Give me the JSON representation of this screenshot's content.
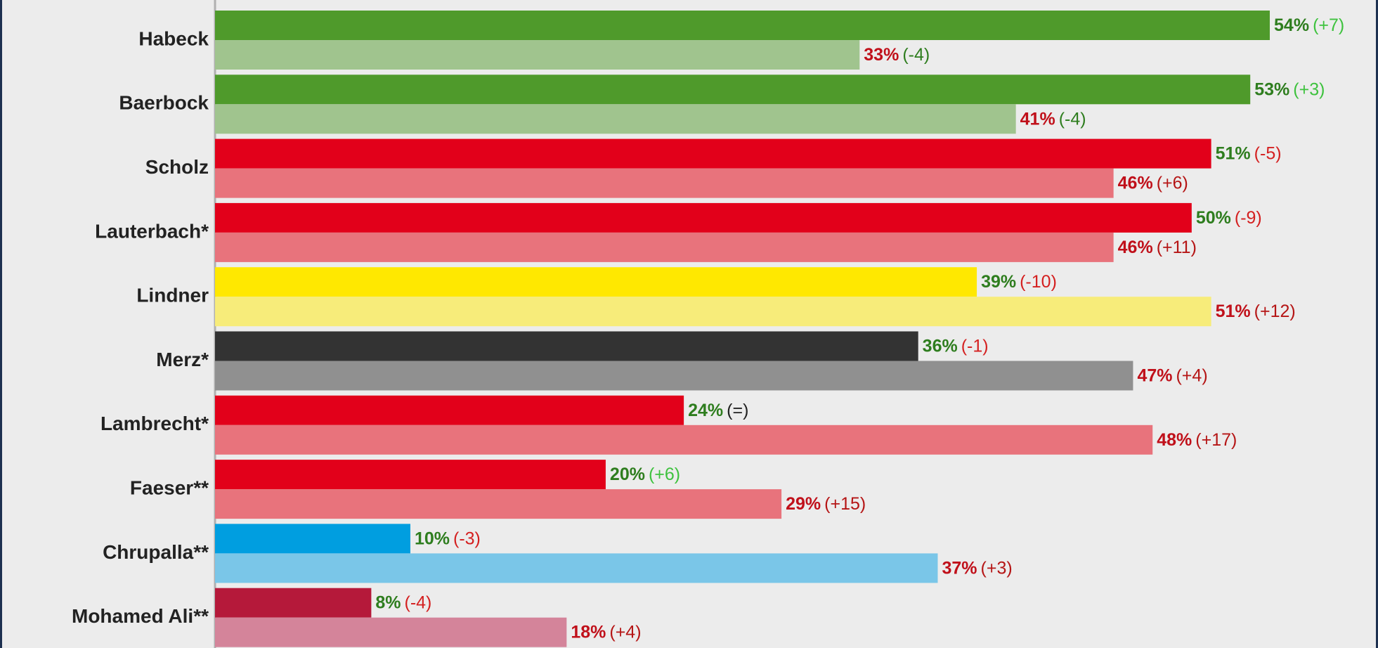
{
  "chart_data": {
    "type": "bar",
    "orientation": "horizontal",
    "categories": [
      "Habeck",
      "Baerbock",
      "Scholz",
      "Lauterbach*",
      "Lindner",
      "Merz*",
      "Lambrecht*",
      "Faeser**",
      "Chrupalla**",
      "Mohamed Ali**"
    ],
    "xlim": [
      0,
      59
    ],
    "series": [
      {
        "values": [
          54,
          53,
          51,
          50,
          39,
          36,
          24,
          20,
          10,
          8
        ],
        "value_labels": [
          "54%",
          "53%",
          "51%",
          "50%",
          "39%",
          "36%",
          "24%",
          "20%",
          "10%",
          "8%"
        ],
        "changes": [
          "(+7)",
          "(+3)",
          "(-5)",
          "(-9)",
          "(-10)",
          "(-1)",
          "(=)",
          "(+6)",
          "(-3)",
          "(-4)"
        ],
        "colors": [
          "#4f9a2b",
          "#4f9a2b",
          "#e2001a",
          "#e2001a",
          "#ffe800",
          "#333333",
          "#e2001a",
          "#e2001a",
          "#009ee0",
          "#b5193a"
        ],
        "label_color": "#2e7d1e",
        "change_colors": {
          "+": "#3ec23e",
          "-": "#d42020",
          "=": "#222222"
        }
      },
      {
        "values": [
          33,
          41,
          46,
          46,
          51,
          47,
          48,
          29,
          37,
          18
        ],
        "value_labels": [
          "33%",
          "41%",
          "46%",
          "46%",
          "51%",
          "47%",
          "48%",
          "29%",
          "37%",
          "18%"
        ],
        "changes": [
          "(-4)",
          "(-4)",
          "(+6)",
          "(+11)",
          "(+12)",
          "(+4)",
          "(+17)",
          "(+15)",
          "(+3)",
          "(+4)"
        ],
        "colors": [
          "#a0c48e",
          "#a0c48e",
          "#e8737c",
          "#e8737c",
          "#f7ec7a",
          "#909090",
          "#e8737c",
          "#e8737c",
          "#7ac6e8",
          "#d4849a"
        ],
        "label_color": "#c0101a",
        "change_colors": {
          "+": "#b51515",
          "-": "#2e7d1e",
          "=": "#222222"
        }
      }
    ]
  }
}
